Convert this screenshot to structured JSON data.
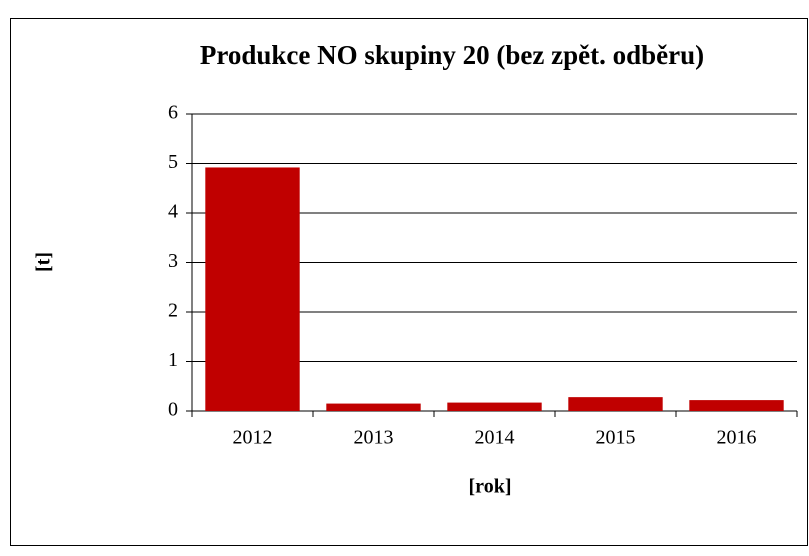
{
  "chart_data": {
    "type": "bar",
    "title": "Produkce NO skupiny 20 (bez zpět. odběru)",
    "x_label": "[rok]",
    "y_label": "[t]",
    "categories": [
      "2012",
      "2013",
      "2014",
      "2015",
      "2016"
    ],
    "values": [
      4.92,
      0.15,
      0.17,
      0.28,
      0.22
    ],
    "color": "#c00000",
    "ylim": [
      0,
      6
    ],
    "yticks": [
      0,
      1,
      2,
      3,
      4,
      5,
      6
    ],
    "grid": true
  }
}
